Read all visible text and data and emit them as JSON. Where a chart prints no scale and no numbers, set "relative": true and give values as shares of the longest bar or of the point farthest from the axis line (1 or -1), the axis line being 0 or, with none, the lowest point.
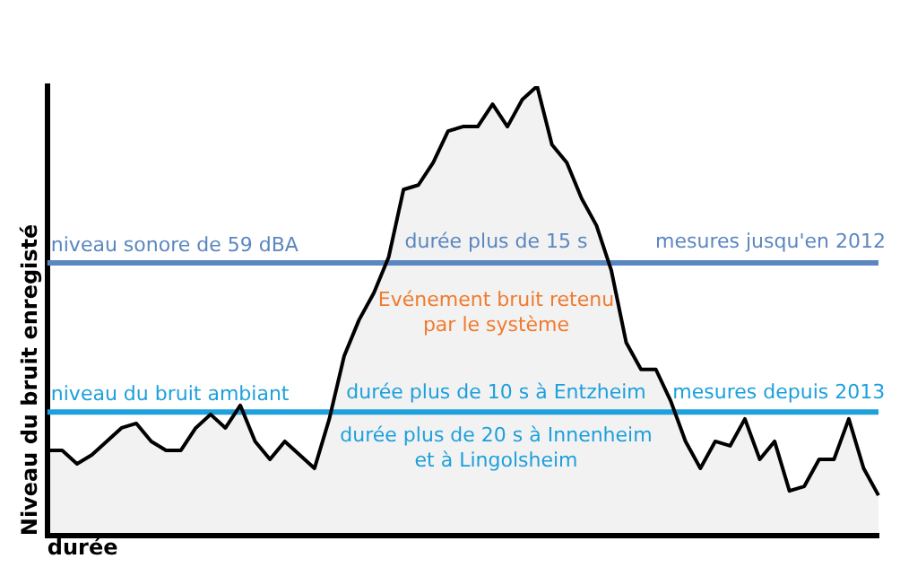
{
  "chart_data": {
    "type": "area",
    "relative": true,
    "xlabel": "durée",
    "ylabel": "Niveau du bruit enregisté",
    "categories": [
      null,
      null,
      null,
      null,
      null,
      null,
      null,
      null,
      null,
      null,
      null,
      null,
      null,
      null,
      null,
      null,
      null,
      null,
      null,
      null,
      null,
      null,
      null,
      null,
      null,
      null,
      null,
      null,
      null,
      null,
      null,
      null,
      null,
      null,
      null,
      null,
      null,
      null,
      null,
      null,
      null,
      null,
      null,
      null,
      null,
      null,
      null,
      null,
      null,
      null,
      null,
      null,
      null,
      null,
      null,
      null,
      null
    ],
    "series": [
      {
        "color": "#000000",
        "values": [
          0.19,
          0.19,
          0.16,
          0.18,
          0.21,
          0.24,
          0.25,
          0.21,
          0.19,
          0.19,
          0.24,
          0.27,
          0.24,
          0.29,
          0.21,
          0.17,
          0.21,
          0.18,
          0.15,
          0.26,
          0.4,
          0.48,
          0.54,
          0.62,
          0.77,
          0.78,
          0.83,
          0.9,
          0.91,
          0.91,
          0.96,
          0.91,
          0.97,
          1,
          0.87,
          0.83,
          0.75,
          0.69,
          0.59,
          0.43,
          0.37,
          0.37,
          0.3,
          0.21,
          0.15,
          0.21,
          0.2,
          0.26,
          0.17,
          0.21,
          0.1,
          0.11,
          0.17,
          0.17,
          0.26,
          0.15,
          0.09
        ]
      }
    ],
    "ref_lines": [
      {
        "axis": "y",
        "value": 0.607,
        "label": "niveau sonore de 59 dBA",
        "color": "#5b87c0"
      },
      {
        "axis": "y",
        "value": 0.275,
        "label": "niveau du bruit ambiant",
        "color": "#1ea0dc"
      }
    ],
    "annotations": [
      "durée plus de 15 s",
      "mesures jusqu'en 2012",
      "Evénement bruit retenu par le système",
      "durée plus de 10 s à Entzheim",
      "mesures depuis 2013",
      "durée plus de 20 s à Innenheim et à Lingolsheim"
    ],
    "grid": false,
    "legend": false,
    "marker": "none",
    "line_style": "solid"
  }
}
